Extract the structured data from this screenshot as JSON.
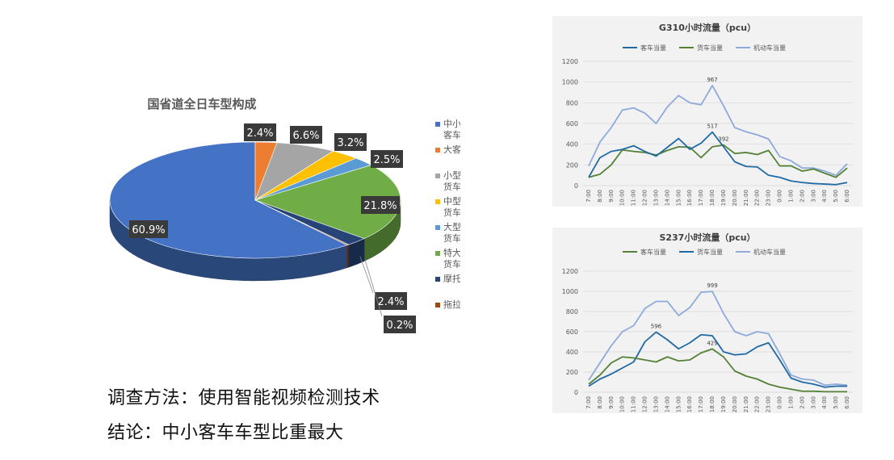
{
  "chart_data": [
    {
      "type": "pie",
      "title": "国省道全日车型构成",
      "categories": [
        "中小客车",
        "大客车",
        "小型货车",
        "中型货车",
        "大型货车",
        "特大货车",
        "摩托车",
        "拖拉机"
      ],
      "values": [
        60.9,
        2.4,
        6.6,
        3.2,
        2.5,
        21.8,
        2.4,
        0.2
      ],
      "labels": [
        "60.9%",
        "2.4%",
        "6.6%",
        "3.2%",
        "2.5%",
        "21.8%",
        "2.4%",
        "0.2%"
      ],
      "colors": [
        "#4472c4",
        "#ed7d31",
        "#a5a5a5",
        "#ffc000",
        "#5b9bd5",
        "#70ad47",
        "#264478",
        "#9e480e"
      ],
      "legend_position": "right"
    },
    {
      "type": "line",
      "title": "G310小时流量（pcu）",
      "x": [
        "7:00",
        "8:00",
        "9:00",
        "10:00",
        "11:00",
        "12:00",
        "13:00",
        "14:00",
        "15:00",
        "16:00",
        "17:00",
        "18:00",
        "19:00",
        "20:00",
        "21:00",
        "22:00",
        "23:00",
        "0:00",
        "1:00",
        "2:00",
        "3:00",
        "4:00",
        "5:00",
        "6:00"
      ],
      "series": [
        {
          "name": "客车当量",
          "color": "#1f6aa5",
          "values": [
            80,
            270,
            330,
            350,
            385,
            330,
            285,
            370,
            455,
            350,
            410,
            517,
            375,
            230,
            185,
            180,
            100,
            80,
            45,
            30,
            20,
            15,
            10,
            30
          ]
        },
        {
          "name": "货车当量",
          "color": "#538135",
          "values": [
            80,
            110,
            200,
            345,
            330,
            320,
            295,
            340,
            375,
            370,
            270,
            375,
            392,
            310,
            320,
            300,
            340,
            190,
            190,
            140,
            160,
            120,
            80,
            170
          ]
        },
        {
          "name": "机动车当量",
          "color": "#8eaadb",
          "values": [
            190,
            420,
            560,
            730,
            750,
            700,
            600,
            760,
            870,
            800,
            780,
            967,
            770,
            560,
            520,
            490,
            450,
            280,
            240,
            170,
            170,
            140,
            100,
            210
          ]
        }
      ],
      "annotations": [
        "967",
        "517",
        "392"
      ],
      "ylim": [
        0,
        1200
      ],
      "yticks": [
        "0",
        "200",
        "400",
        "600",
        "800",
        "1000",
        "1200"
      ],
      "legend_position": "top"
    },
    {
      "type": "line",
      "title": "S237小时流量（pcu）",
      "x": [
        "7:00",
        "8:00",
        "9:00",
        "10:00",
        "11:00",
        "12:00",
        "13:00",
        "14:00",
        "15:00",
        "16:00",
        "17:00",
        "18:00",
        "19:00",
        "20:00",
        "21:00",
        "22:00",
        "23:00",
        "0:00",
        "1:00",
        "2:00",
        "3:00",
        "4:00",
        "5:00",
        "6:00"
      ],
      "series": [
        {
          "name": "客车当量",
          "color": "#538135",
          "values": [
            80,
            170,
            290,
            350,
            340,
            320,
            300,
            350,
            310,
            320,
            390,
            429,
            350,
            210,
            160,
            130,
            80,
            50,
            30,
            10,
            10,
            5,
            5,
            5
          ]
        },
        {
          "name": "货车当量",
          "color": "#1f6aa5",
          "values": [
            60,
            130,
            180,
            240,
            300,
            500,
            596,
            520,
            430,
            490,
            570,
            560,
            400,
            370,
            380,
            450,
            490,
            320,
            140,
            100,
            80,
            50,
            60,
            60
          ]
        },
        {
          "name": "机动车当量",
          "color": "#8eaadb",
          "values": [
            120,
            290,
            460,
            600,
            660,
            830,
            900,
            900,
            760,
            840,
            990,
            999,
            780,
            600,
            560,
            600,
            580,
            380,
            170,
            130,
            120,
            70,
            80,
            70
          ]
        }
      ],
      "annotations": [
        "999",
        "596",
        "429"
      ],
      "ylim": [
        0,
        1200
      ],
      "yticks": [
        "0",
        "200",
        "400",
        "600",
        "800",
        "1000",
        "1200"
      ],
      "legend_position": "top"
    }
  ],
  "notes": {
    "method": "调查方法：使用智能视频检测技术",
    "conclusion": "结论：中小客车车型比重最大"
  }
}
